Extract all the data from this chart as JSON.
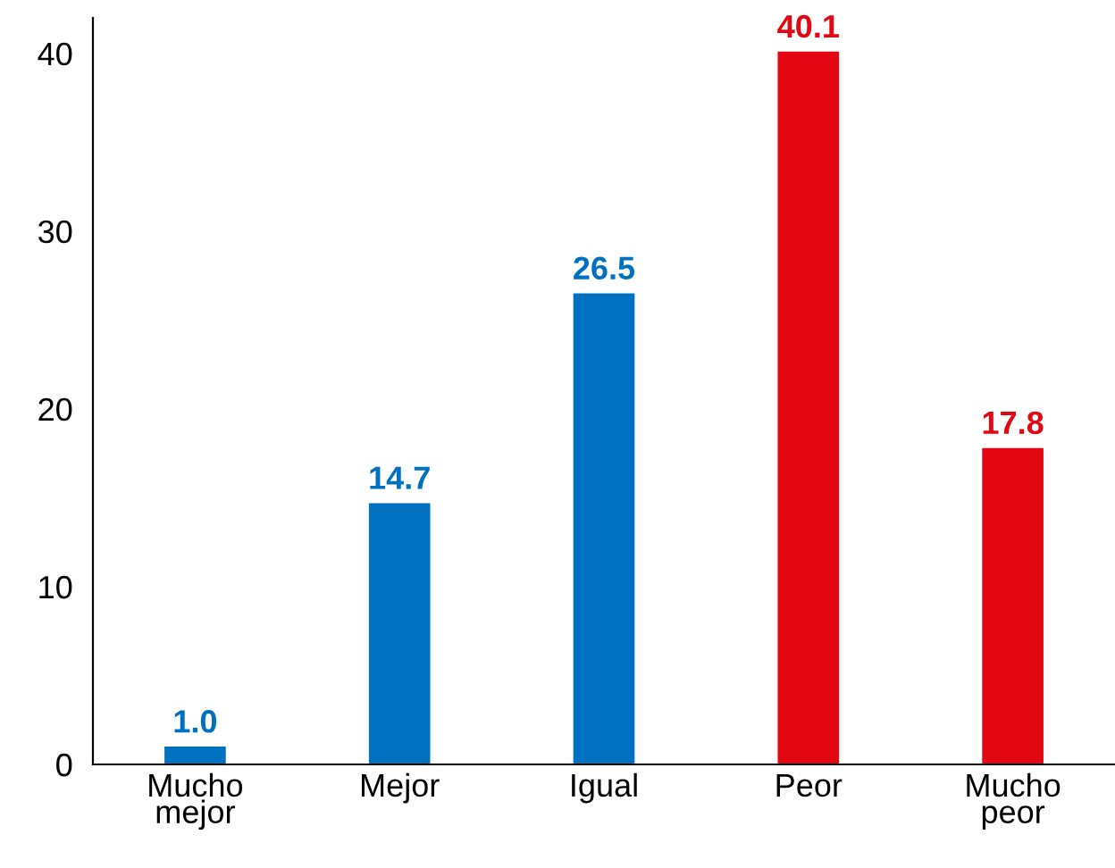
{
  "chart_data": {
    "type": "bar",
    "categories": [
      "Mucho mejor",
      "Mejor",
      "Igual",
      "Peor",
      "Mucho peor"
    ],
    "values": [
      1.0,
      14.7,
      26.5,
      40.1,
      17.8
    ],
    "colors": [
      "#0070c0",
      "#0070c0",
      "#0070c0",
      "#e30613",
      "#e30613"
    ],
    "ylim": [
      0,
      42
    ],
    "yticks": [
      0,
      10,
      20,
      30,
      40
    ],
    "value_labels": [
      "1.0",
      "14.7",
      "26.5",
      "40.1",
      "17.8"
    ],
    "grid": false,
    "legend": false
  }
}
